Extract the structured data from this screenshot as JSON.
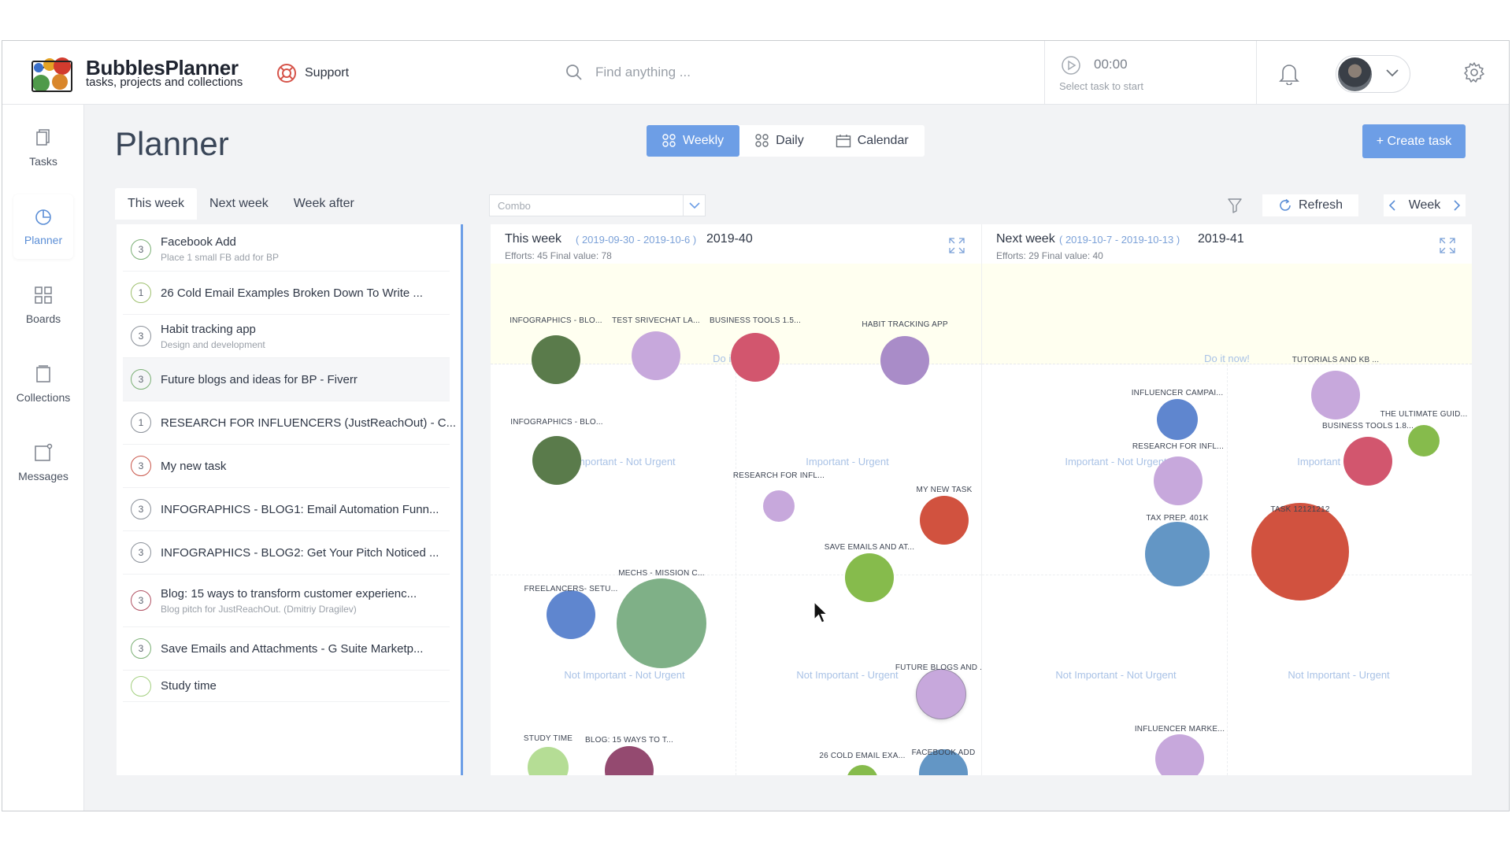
{
  "brand": {
    "name": "BubblesPlanner",
    "tagline": "tasks, projects and collections"
  },
  "header": {
    "support_label": "Support",
    "search_placeholder": "Find anything ...",
    "timer_time": "00:00",
    "timer_hint": "Select task to start"
  },
  "nav": {
    "items": [
      {
        "label": "Tasks",
        "icon": "tasks-icon"
      },
      {
        "label": "Planner",
        "icon": "planner-icon",
        "active": true
      },
      {
        "label": "Boards",
        "icon": "boards-icon"
      },
      {
        "label": "Collections",
        "icon": "collections-icon"
      },
      {
        "label": "Messages",
        "icon": "messages-icon"
      }
    ]
  },
  "page": {
    "title": "Planner"
  },
  "views": [
    {
      "label": "Weekly",
      "active": true
    },
    {
      "label": "Daily"
    },
    {
      "label": "Calendar"
    }
  ],
  "create_task_label": "+ Create task",
  "week_tabs": [
    {
      "label": "This week",
      "active": true
    },
    {
      "label": "Next week"
    },
    {
      "label": "Week after"
    }
  ],
  "combo_value": "Combo",
  "refresh_label": "Refresh",
  "week_nav_label": "Week",
  "tasks": [
    {
      "num": "3",
      "title": "Facebook Add",
      "sub": "Place 1 small FB add for BP",
      "ring": "#7bb075"
    },
    {
      "num": "1",
      "title": "26 Cold Email Examples Broken Down To Write ...",
      "sub": "",
      "ring": "#9ec06e"
    },
    {
      "num": "3",
      "title": "Habit tracking app",
      "sub": "Design and development",
      "ring": "#8a9099"
    },
    {
      "num": "3",
      "title": "Future blogs and ideas for BP - Fiverr",
      "sub": "",
      "ring": "#7bb075"
    },
    {
      "num": "1",
      "title": "RESEARCH FOR INFLUENCERS (JustReachOut) - C...",
      "sub": "",
      "ring": "#8a9099"
    },
    {
      "num": "3",
      "title": "My new task",
      "sub": "",
      "ring": "#c9564a"
    },
    {
      "num": "3",
      "title": "INFOGRAPHICS - BLOG1: Email Automation Funn...",
      "sub": "",
      "ring": "#8a9099"
    },
    {
      "num": "3",
      "title": "INFOGRAPHICS - BLOG2: Get Your Pitch Noticed ...",
      "sub": "",
      "ring": "#8a9099"
    },
    {
      "num": "3",
      "title": "Blog: 15 ways to transform customer experienc...",
      "sub": "Blog pitch for JustReachOut. (Dmitriy Dragilev)",
      "ring": "#b05062"
    },
    {
      "num": "3",
      "title": "Save Emails and Attachments - G Suite Marketp...",
      "sub": "",
      "ring": "#7bb075"
    },
    {
      "num": "",
      "title": "Study time",
      "sub": "",
      "ring": "#a4d080"
    }
  ],
  "panels": [
    {
      "title": "This week",
      "dates": "( 2019-09-30 - 2019-10-6 )",
      "code": "2019-40",
      "stats": "Efforts: 45   Final value: 78",
      "quadrants": [
        "Do it now!",
        "Important - Not Urgent",
        "Important - Urgent",
        "Not Important - Not Urgent",
        "Not Important - Urgent"
      ],
      "bubbles": [
        {
          "label": "INFOGRAPHICS - BLO...",
          "color": "#5a7b4b"
        },
        {
          "label": "TEST SRIVECHAT LA...",
          "color": "#c7a8dc"
        },
        {
          "label": "BUSINESS TOOLS 1.5...",
          "color": "#d2566e"
        },
        {
          "label": "HABIT TRACKING APP",
          "color": "#a98cc8"
        },
        {
          "label": "INFOGRAPHICS - BLO...",
          "color": "#5a7b4b"
        },
        {
          "label": "RESEARCH FOR INFL...",
          "color": "#c7a8dc"
        },
        {
          "label": "MY NEW TASK",
          "color": "#d1523f"
        },
        {
          "label": "SAVE EMAILS AND AT...",
          "color": "#86bb4c"
        },
        {
          "label": "FREELANCERS- SETU...",
          "color": "#5f86cf"
        },
        {
          "label": "MECHS - MISSION C...",
          "color": "#7fb087"
        },
        {
          "label": "FUTURE BLOGS AND ...",
          "color": "#c7a8dc"
        },
        {
          "label": "STUDY TIME",
          "color": "#b5dd95"
        },
        {
          "label": "BLOG: 15 WAYS TO T...",
          "color": "#944a70"
        },
        {
          "label": "26 COLD EMAIL EXA...",
          "color": "#86bb4c"
        },
        {
          "label": "FACEBOOK ADD",
          "color": "#6396c5"
        }
      ]
    },
    {
      "title": "Next week",
      "dates": "( 2019-10-7 - 2019-10-13 )",
      "code": "2019-41",
      "stats": "Efforts: 29   Final value: 40",
      "quadrants": [
        "Do it now!",
        "Important - Not Urgent",
        "Important - Urgent",
        "Not Important - Not Urgent",
        "Not Important - Urgent"
      ],
      "bubbles": [
        {
          "label": "TUTORIALS AND KB ...",
          "color": "#c7a8dc"
        },
        {
          "label": "INFLUENCER CAMPAI...",
          "color": "#5f86cf"
        },
        {
          "label": "THE ULTIMATE GUID...",
          "color": "#86bb4c"
        },
        {
          "label": "BUSINESS TOOLS 1.8...",
          "color": "#d2566e"
        },
        {
          "label": "RESEARCH FOR INFL...",
          "color": "#c7a8dc"
        },
        {
          "label": "TASK 12121212",
          "color": "#d1523f"
        },
        {
          "label": "TAX PREP. 401K",
          "color": "#6396c5"
        },
        {
          "label": "INFLUENCER MARKE...",
          "color": "#c7a8dc"
        }
      ]
    }
  ]
}
